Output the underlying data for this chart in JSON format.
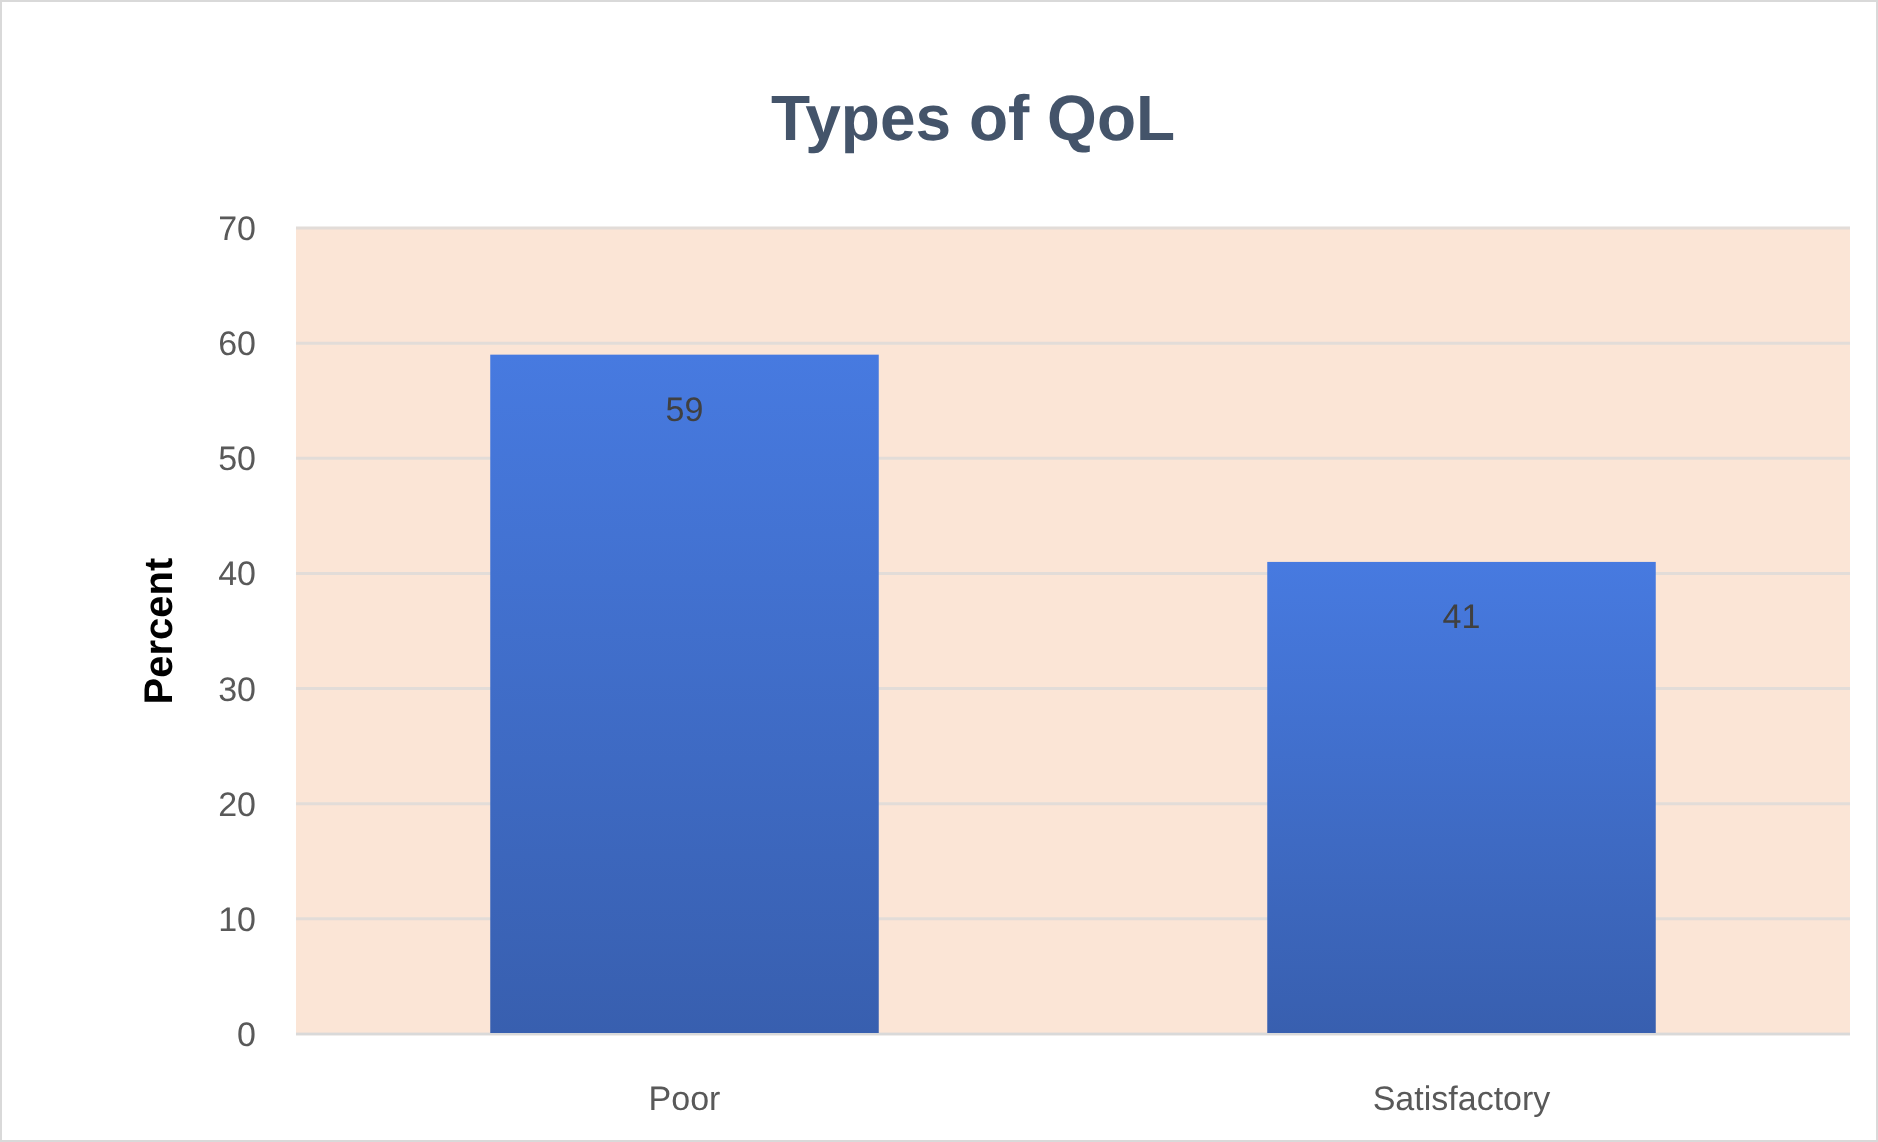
{
  "chart_data": {
    "type": "bar",
    "title": "Types of QoL",
    "ylabel": "Percent",
    "categories": [
      "Poor",
      "Satisfactory"
    ],
    "values": [
      59,
      41
    ],
    "color": "#3f6cc6",
    "ylim": [
      0,
      70
    ],
    "yticks": [
      0,
      10,
      20,
      30,
      40,
      50,
      60,
      70
    ],
    "grid": "y",
    "data_labels": true
  }
}
